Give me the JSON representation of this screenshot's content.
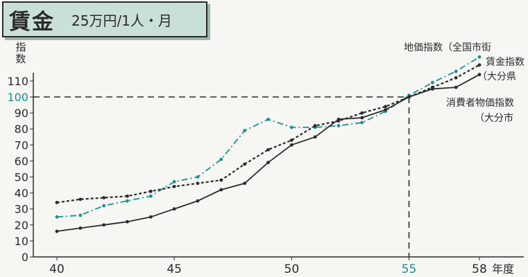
{
  "header": {
    "title": "賃金",
    "unit": "25万円/1人・月"
  },
  "annotations": {
    "land_line1": "地価指数（全国市街",
    "wage_line1": "賃金指数",
    "wage_line2": "（大分県",
    "cpi_line1": "消費者物価指数",
    "cpi_line2": "（大分市"
  },
  "colors": {
    "land": "#1a9090",
    "wage": "#2a2a2a",
    "cpi": "#2a2a2a",
    "axis": "#2a2a2a",
    "highlight": "#1a9090"
  },
  "chart_data": {
    "type": "line",
    "ylabel": "指数",
    "xlabel": "年度",
    "xlim": [
      39,
      58.5
    ],
    "ylim": [
      0,
      115
    ],
    "reference": {
      "x": 55,
      "y": 100
    },
    "x_ticks": [
      {
        "value": 40,
        "label": "40"
      },
      {
        "value": 45,
        "label": "45"
      },
      {
        "value": 50,
        "label": "50"
      },
      {
        "value": 55,
        "label": "55",
        "highlight": true
      },
      {
        "value": 58,
        "label": "58"
      }
    ],
    "y_ticks": [
      {
        "value": 0,
        "label": "0"
      },
      {
        "value": 10,
        "label": "10"
      },
      {
        "value": 20,
        "label": "20"
      },
      {
        "value": 30,
        "label": "30"
      },
      {
        "value": 40,
        "label": "40"
      },
      {
        "value": 50,
        "label": "50"
      },
      {
        "value": 60,
        "label": "60"
      },
      {
        "value": 70,
        "label": "70"
      },
      {
        "value": 80,
        "label": "80"
      },
      {
        "value": 90,
        "label": "90"
      },
      {
        "value": 100,
        "label": "100",
        "highlight": true
      },
      {
        "value": 110,
        "label": "110"
      }
    ],
    "series": [
      {
        "name": "地価指数",
        "key": "land",
        "style": "dashdot",
        "x": [
          40,
          41,
          42,
          43,
          44,
          45,
          46,
          47,
          48,
          49,
          50,
          51,
          52,
          53,
          54,
          55,
          56,
          57,
          58
        ],
        "y": [
          25,
          26,
          32,
          35,
          38,
          47,
          50,
          61,
          79,
          86,
          81,
          81,
          82,
          84,
          91,
          101,
          109,
          116,
          125
        ]
      },
      {
        "name": "賃金指数",
        "key": "wage",
        "style": "dotted",
        "x": [
          40,
          41,
          42,
          43,
          44,
          45,
          46,
          47,
          48,
          49,
          50,
          51,
          52,
          53,
          54,
          55,
          56,
          57,
          58
        ],
        "y": [
          34,
          36,
          37,
          38,
          41,
          44,
          46,
          48,
          58,
          67,
          73,
          82,
          85,
          90,
          94,
          100,
          106,
          112,
          120
        ]
      },
      {
        "name": "消費者物価指数",
        "key": "cpi",
        "style": "solid",
        "x": [
          40,
          41,
          42,
          43,
          44,
          45,
          46,
          47,
          48,
          49,
          50,
          51,
          52,
          53,
          54,
          55,
          56,
          57,
          58
        ],
        "y": [
          16,
          18,
          20,
          22,
          25,
          30,
          35,
          42,
          46,
          59,
          70,
          75,
          86,
          87,
          92,
          100,
          105,
          106,
          114
        ]
      }
    ]
  }
}
